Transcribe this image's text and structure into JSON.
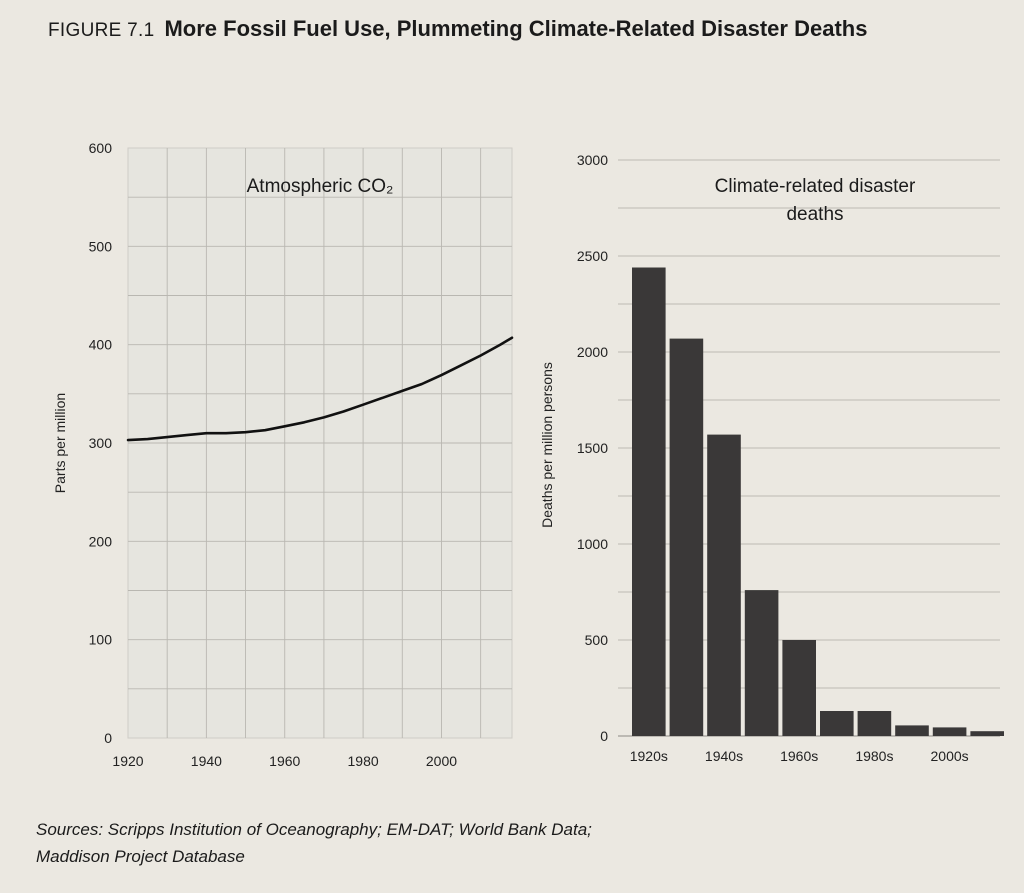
{
  "figure": {
    "label": "FIGURE 7.1",
    "title": "More Fossil Fuel Use, Plummeting Climate-Related Disaster Deaths"
  },
  "sources": {
    "line1": "Sources: Scripps Institution of Oceanography; EM-DAT; World Bank Data;",
    "line2": "Maddison Project Database"
  },
  "chart_data": [
    {
      "type": "line",
      "title": "Atmospheric CO₂",
      "xlabel": "",
      "ylabel": "Parts per million",
      "xlim": [
        1920,
        2018
      ],
      "ylim": [
        0,
        600
      ],
      "x_ticks": [
        1920,
        1940,
        1960,
        1980,
        2000
      ],
      "y_ticks": [
        0,
        100,
        200,
        300,
        400,
        500,
        600
      ],
      "grid": true,
      "color": "#111111",
      "series": [
        {
          "x": [
            1920,
            1925,
            1930,
            1935,
            1940,
            1945,
            1950,
            1955,
            1960,
            1965,
            1970,
            1975,
            1980,
            1985,
            1990,
            1995,
            2000,
            2005,
            2010,
            2015,
            2018
          ],
          "y": [
            303,
            304,
            306,
            308,
            310,
            310,
            311,
            313,
            317,
            321,
            326,
            332,
            339,
            346,
            353,
            360,
            369,
            379,
            389,
            400,
            407
          ]
        }
      ]
    },
    {
      "type": "bar",
      "title": "Climate-related disaster deaths",
      "xlabel": "",
      "ylabel": "Deaths per million persons",
      "ylim": [
        0,
        3000
      ],
      "y_ticks": [
        0,
        500,
        1000,
        1500,
        2000,
        2500,
        3000
      ],
      "categories": [
        "1920s",
        "1930s",
        "1940s",
        "1950s",
        "1960s",
        "1970s",
        "1980s",
        "1990s",
        "2000s",
        "2010s"
      ],
      "category_labels_shown": [
        "1920s",
        "1940s",
        "1960s",
        "1980s",
        "2000s"
      ],
      "values": [
        2440,
        2070,
        1570,
        760,
        500,
        130,
        130,
        55,
        45,
        25
      ],
      "grid": true,
      "color": "#3a3838"
    }
  ]
}
